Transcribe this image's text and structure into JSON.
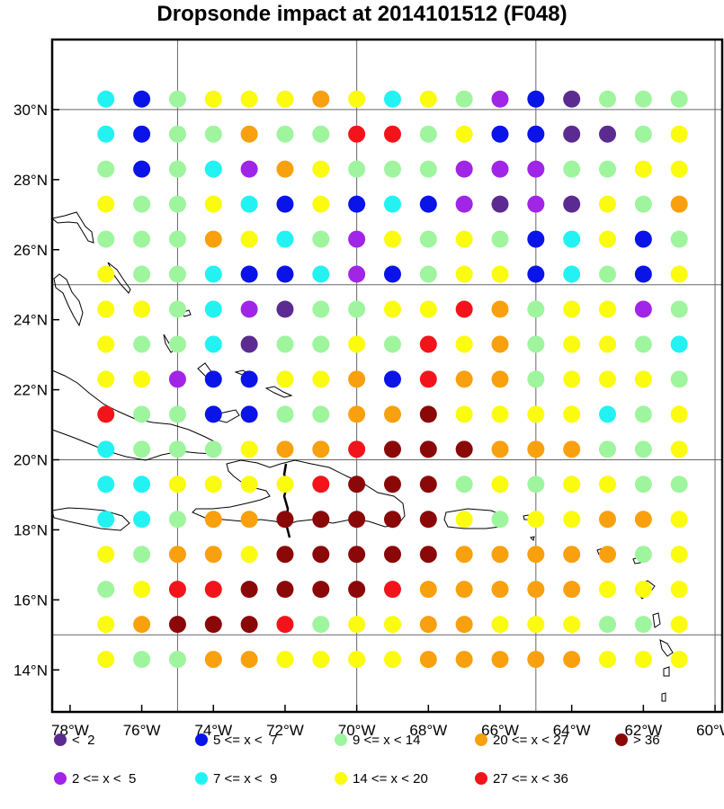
{
  "title": "Dropsonde impact at 2014101512 (F048)",
  "map": {
    "lon_range": [
      -78.5,
      -59.8
    ],
    "lat_range": [
      12.8,
      32.0
    ],
    "gridlines_lon": [
      -75,
      -70,
      -65,
      -60
    ],
    "gridlines_lat": [
      15,
      20,
      25,
      30
    ],
    "lon_ticks": [
      "78°W",
      "76°W",
      "74°W",
      "72°W",
      "70°W",
      "68°W",
      "66°W",
      "64°W",
      "62°W",
      "60°W"
    ],
    "lat_ticks": [
      "14°N",
      "16°N",
      "18°N",
      "20°N",
      "22°N",
      "24°N",
      "26°N",
      "28°N",
      "30°N"
    ]
  },
  "categories": [
    {
      "key": "a",
      "label": "<  2",
      "color": "#5b2b91"
    },
    {
      "key": "b",
      "label": "2 <= x <  5",
      "color": "#a025e6"
    },
    {
      "key": "c",
      "label": "5 <= x <  7",
      "color": "#0a14e8"
    },
    {
      "key": "d",
      "label": "7 <= x <  9",
      "color": "#22f2f2"
    },
    {
      "key": "e",
      "label": "9 <= x < 14",
      "color": "#9ef59e"
    },
    {
      "key": "f",
      "label": "14 <= x < 20",
      "color": "#fbfb0f"
    },
    {
      "key": "g",
      "label": "20 <= x < 27",
      "color": "#f8a00e"
    },
    {
      "key": "h",
      "label": "27 <= x < 36",
      "color": "#f2141a"
    },
    {
      "key": "i",
      "label": "> 36",
      "color": "#8b0808"
    }
  ],
  "chart_data": {
    "type": "scatter",
    "title": "Dropsonde impact at 2014101512 (F048)",
    "lons": [
      -77,
      -76,
      -75,
      -74,
      -73,
      -72,
      -71,
      -70,
      -69,
      -68,
      -67,
      -66,
      -65,
      -64,
      -63,
      -62,
      -61
    ],
    "lats": [
      30.3,
      29.3,
      28.3,
      27.3,
      26.3,
      25.3,
      24.3,
      23.3,
      22.3,
      21.3,
      20.3,
      19.3,
      18.3,
      17.3,
      16.3,
      15.3,
      14.3
    ],
    "rows": [
      "dcefffgfdfebcaeee",
      "dceegeehhefccaaef",
      "ecedbgfeeebbbeeff",
      "feefdcfcdcbabafeg",
      "eeegfdebfefecdfce",
      "feedccdbceffcdecf",
      "ffedbaeeffhgeffbe",
      "feedaeefehfgeffed",
      "ffbccffgchggefffe",
      "heecceeggiffffdef",
      "deeefgghiiigggeef",
      "ddffffhiiiefeffee",
      "ddeggiiiiifeffggf",
      "feggfiiiiigggggef",
      "efhhiiiihgggggfff",
      "fgiiiheffggfffeef",
      "feeggffffgggggfff"
    ]
  }
}
